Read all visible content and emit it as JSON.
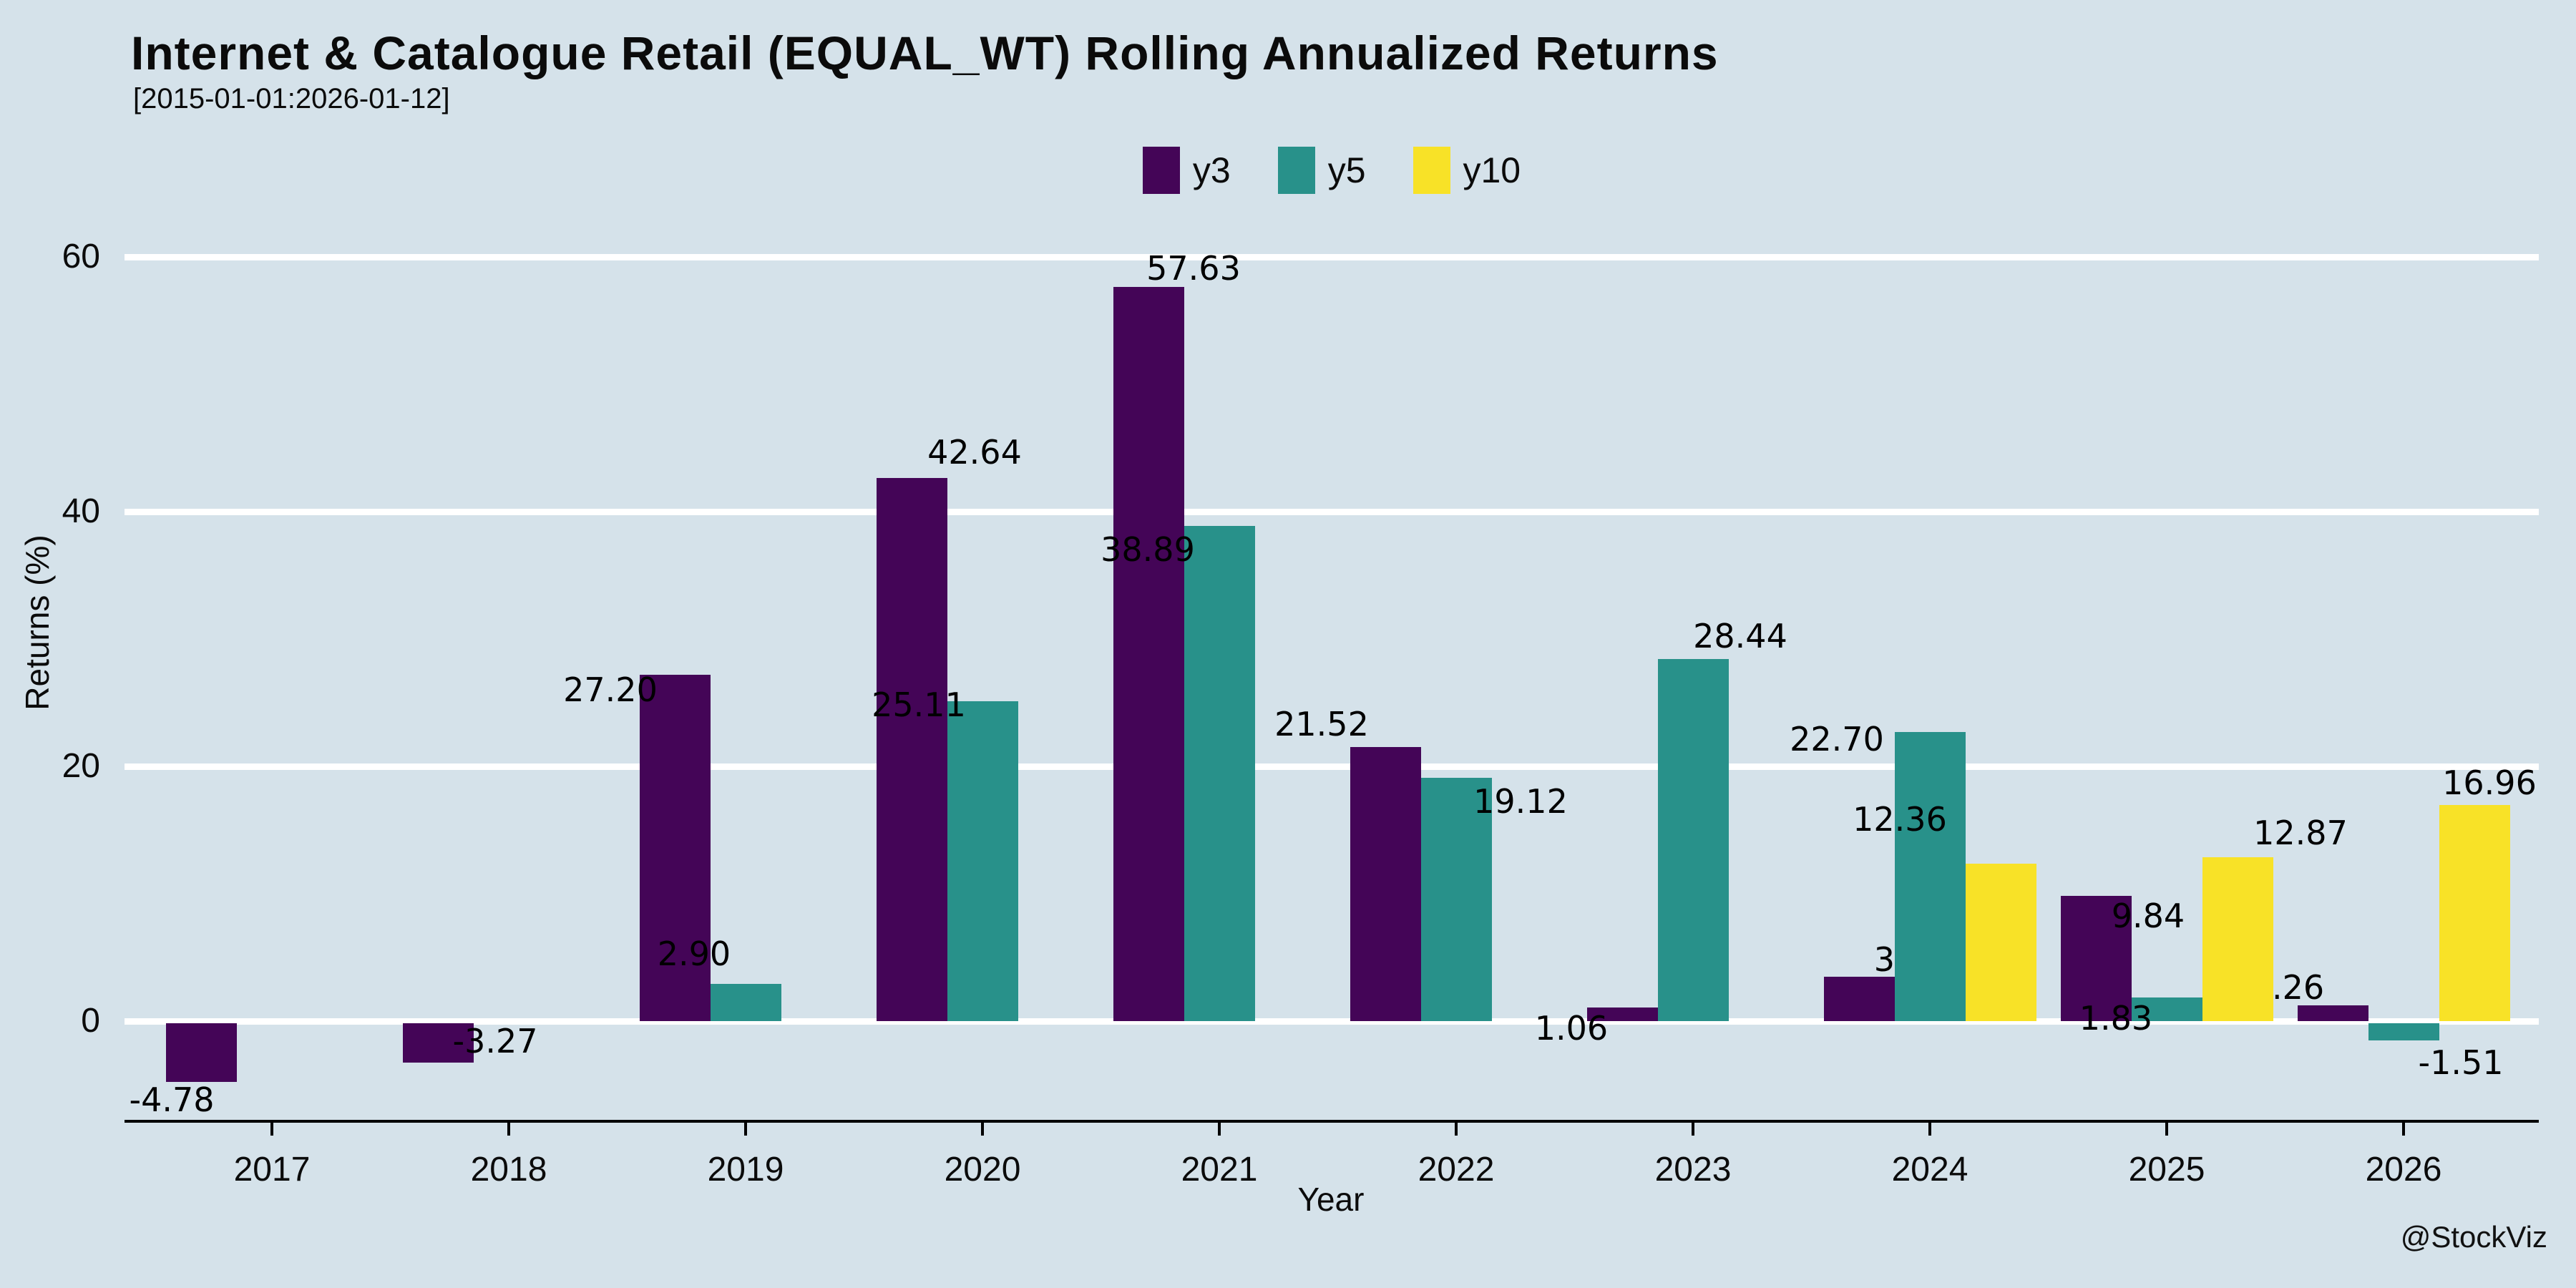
{
  "title": "Internet & Catalogue Retail (EQUAL_WT) Rolling Annualized Returns",
  "subtitle": "[2015-01-01:2026-01-12]",
  "watermark": "@StockViz",
  "axis": {
    "xlabel": "Year",
    "ylabel": "Returns (%)",
    "yticks": [
      0,
      20,
      40,
      60
    ]
  },
  "legend": [
    "y3",
    "y5",
    "y10"
  ],
  "colors": {
    "background": "#d5e2ea",
    "gridline": "#ffffff",
    "axis": "#000000",
    "text": "#0b0b0b",
    "y3": "#440557",
    "y5": "#28918a",
    "y10": "#f8e227"
  },
  "chart_data": {
    "type": "bar",
    "title": "Internet & Catalogue Retail (EQUAL_WT) Rolling Annualized Returns",
    "subtitle": "[2015-01-01:2026-01-12]",
    "xlabel": "Year",
    "ylabel": "Returns (%)",
    "categories": [
      "2017",
      "2018",
      "2019",
      "2020",
      "2021",
      "2022",
      "2023",
      "2024",
      "2025",
      "2026"
    ],
    "series": [
      {
        "name": "y3",
        "values": [
          -4.78,
          -3.27,
          27.2,
          42.64,
          57.63,
          21.52,
          1.06,
          3.46,
          9.84,
          1.26
        ]
      },
      {
        "name": "y5",
        "values": [
          null,
          null,
          2.9,
          25.11,
          38.89,
          19.12,
          28.44,
          22.7,
          1.83,
          -1.51
        ]
      },
      {
        "name": "y10",
        "values": [
          null,
          null,
          null,
          null,
          null,
          null,
          null,
          12.36,
          12.87,
          16.96
        ]
      }
    ],
    "ylim": [
      -8,
      72
    ],
    "grid": true,
    "gridlines_at": [
      0,
      20,
      40,
      60
    ],
    "legend_position": "top center",
    "bar_value_labels": true
  }
}
